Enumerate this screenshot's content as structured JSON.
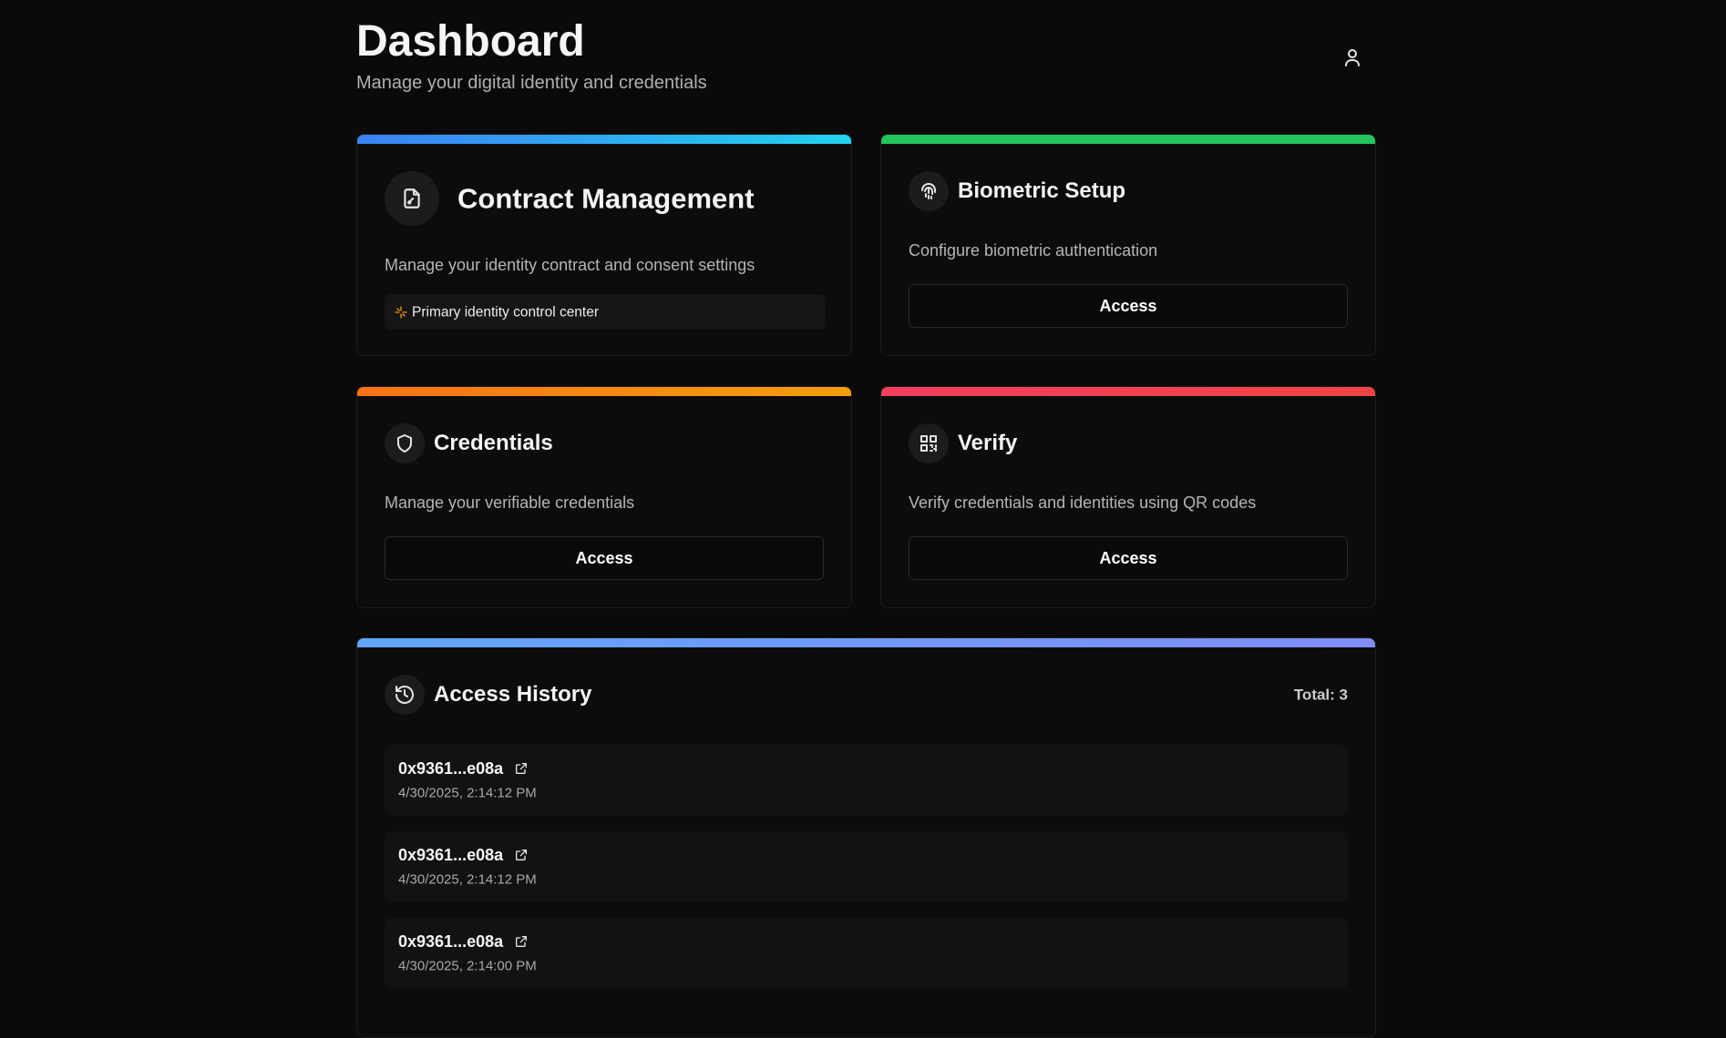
{
  "header": {
    "title": "Dashboard",
    "subtitle": "Manage your digital identity and credentials"
  },
  "cards": [
    {
      "title": "Contract Management",
      "description": "Manage your identity contract and consent settings",
      "badge": "Primary identity control center"
    },
    {
      "title": "Biometric Setup",
      "description": "Configure biometric authentication",
      "button": "Access"
    },
    {
      "title": "Credentials",
      "description": "Manage your verifiable credentials",
      "button": "Access"
    },
    {
      "title": "Verify",
      "description": "Verify credentials and identities using QR codes",
      "button": "Access"
    }
  ],
  "history": {
    "title": "Access History",
    "total": "Total: 3",
    "entries": [
      {
        "address": "0x9361...e08a",
        "timestamp": "4/30/2025, 2:14:12 PM"
      },
      {
        "address": "0x9361...e08a",
        "timestamp": "4/30/2025, 2:14:12 PM"
      },
      {
        "address": "0x9361...e08a",
        "timestamp": "4/30/2025, 2:14:00 PM"
      }
    ]
  }
}
